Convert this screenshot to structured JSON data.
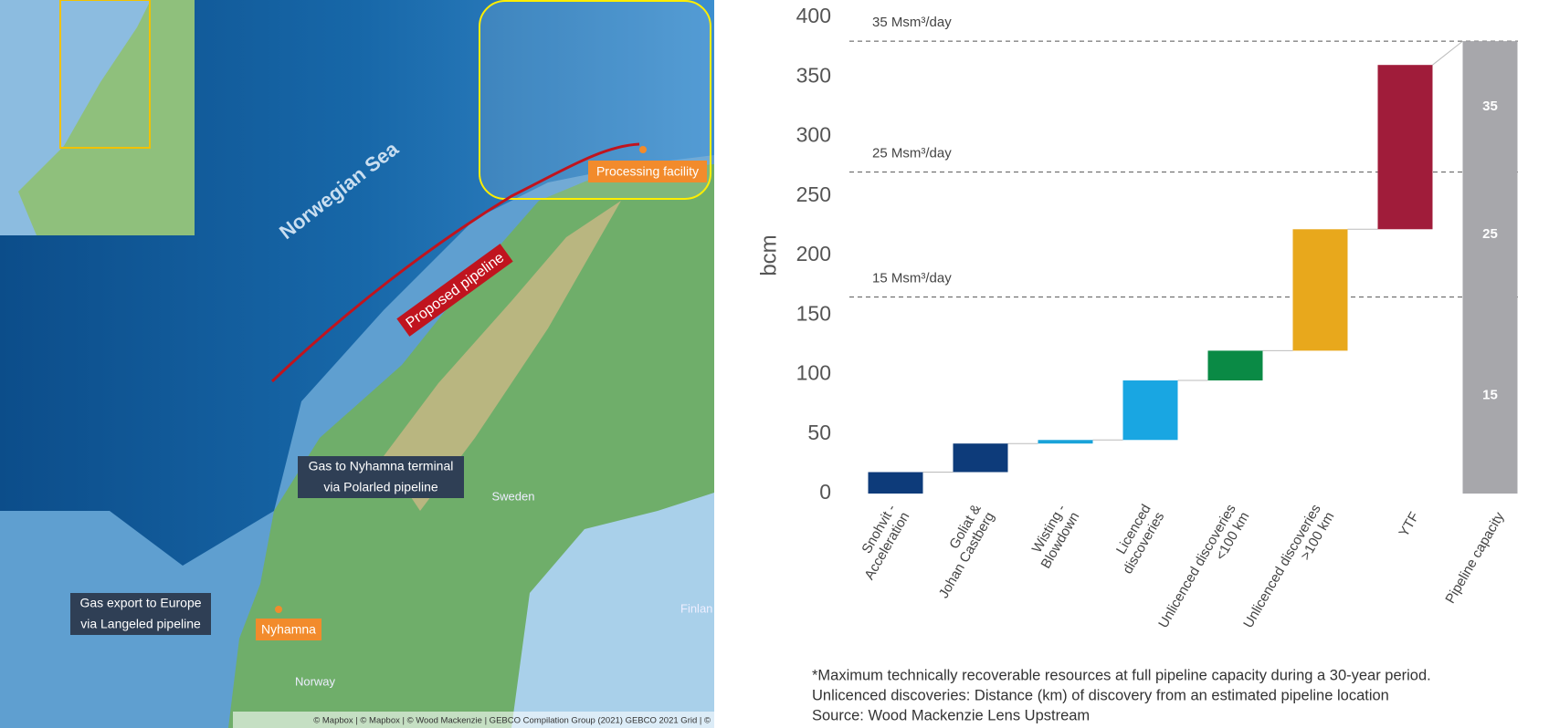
{
  "map": {
    "sea_label": "Norwegian Sea",
    "pipeline_label": "Proposed pipeline",
    "processing_label": "Processing facility",
    "polarled_label": [
      "Gas to Nyhamna terminal",
      "via Polarled pipeline"
    ],
    "langeled_label": [
      "Gas export to Europe",
      "via Langeled pipeline"
    ],
    "nyhamna_label": "Nyhamna",
    "sweden_label": "Sweden",
    "norway_label": "Norway",
    "finland_label": "Finlan",
    "attribution": "© Mapbox | © Mapbox | © Wood Mackenzie | GEBCO Compilation Group (2021) GEBCO 2021 Grid | ©"
  },
  "chart_data": {
    "type": "waterfall",
    "ylabel": "bcm",
    "categories": [
      [
        "Snohvit -",
        "Acceleration"
      ],
      [
        "Goliat &",
        "Johan Castberg"
      ],
      [
        "Wisting -",
        "Blowdown"
      ],
      [
        "Licenced",
        "discoveries"
      ],
      [
        "Unlicenced discoveries",
        "<100 km"
      ],
      [
        "Unlicenced discoveries",
        ">100 km"
      ],
      [
        "YTF"
      ],
      [
        "Pipeline capacity"
      ]
    ],
    "values": [
      18,
      24,
      3,
      50,
      25,
      102,
      138,
      380
    ],
    "colors": [
      "#0d3b7a",
      "#0d3b7a",
      "#1aa3d9",
      "#19a6e2",
      "#0a8a45",
      "#e8a81c",
      "#a01c3a",
      "#a7a7ab"
    ],
    "last_is_total": true,
    "ylim": [
      0,
      400
    ],
    "yticks": [
      0,
      50,
      100,
      150,
      200,
      250,
      300,
      350,
      400
    ],
    "reference_lines": [
      {
        "value": 165,
        "label": "15 Msm³/day"
      },
      {
        "value": 270,
        "label": "25 Msm³/day"
      },
      {
        "value": 380,
        "label": "35 Msm³/day"
      }
    ],
    "capacity_labels": [
      15,
      25,
      35
    ],
    "footnotes": [
      "*Maximum technically recoverable resources at full pipeline capacity during a 30-year period.",
      "Unlicenced discoveries: Distance (km) of discovery from an estimated pipeline location",
      "Source: Wood Mackenzie Lens Upstream"
    ]
  }
}
